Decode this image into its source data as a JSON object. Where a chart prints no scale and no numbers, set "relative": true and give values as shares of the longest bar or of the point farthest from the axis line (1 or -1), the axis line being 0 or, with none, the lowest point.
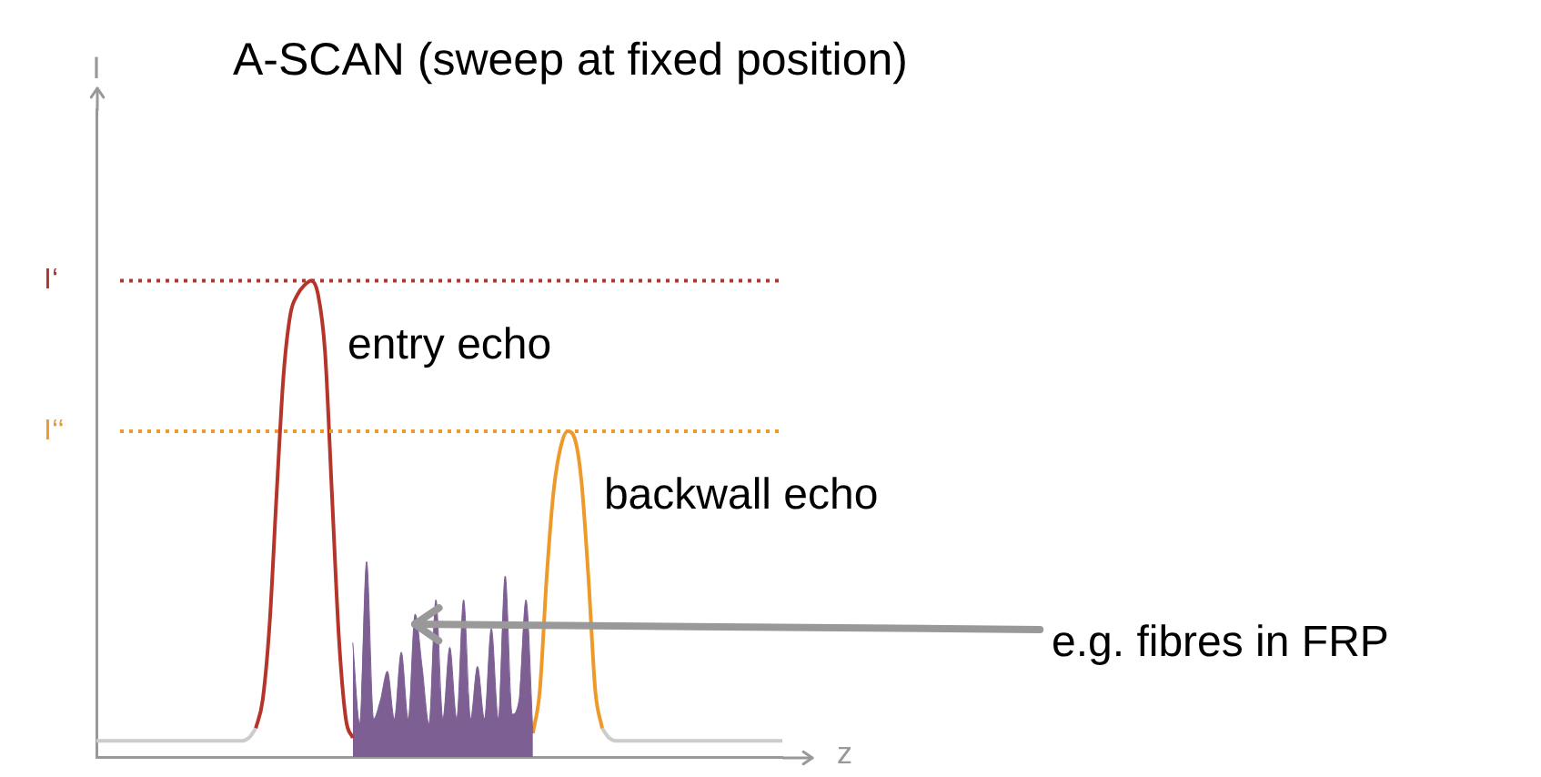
{
  "chart_data": {
    "type": "line",
    "title": "A-SCAN (sweep at fixed position)",
    "xlabel": "z",
    "annotations": [
      "I"
    ],
    "relative": true,
    "categories": [
      null,
      null,
      null,
      null,
      null,
      null,
      null,
      null,
      null,
      null,
      null,
      null,
      null,
      null,
      null,
      null,
      null,
      null,
      null,
      null,
      null,
      null,
      null,
      null,
      null,
      null,
      null,
      null,
      null,
      null,
      null,
      null,
      null,
      null,
      null,
      null,
      null,
      null,
      null,
      null,
      null,
      null,
      null,
      null,
      null,
      null,
      null,
      null,
      null,
      null,
      null,
      null,
      null,
      null,
      null,
      null,
      null,
      null,
      null,
      null,
      null,
      null,
      null,
      null,
      null,
      null,
      null,
      null,
      null,
      null,
      null,
      null,
      null,
      null,
      null,
      null,
      null,
      null,
      null,
      null,
      null,
      null,
      null,
      null,
      null,
      null,
      null,
      null,
      null,
      null,
      null,
      null,
      null,
      null,
      null,
      null,
      null,
      null,
      null,
      null
    ],
    "series": [
      {
        "color": "#cccccc",
        "values": [
          0.034,
          0.034,
          0.034,
          0.034,
          0.034,
          0.034,
          0.034,
          0.034,
          0.034,
          0.034,
          0.034,
          0.034,
          0.034,
          0.034,
          0.034,
          0.034,
          0.034,
          0.034,
          0.034,
          0.034,
          0.034,
          0.034,
          0.04,
          0.06,
          null,
          null,
          null,
          null,
          null,
          null,
          null,
          null,
          null,
          null,
          null,
          null,
          null,
          null,
          null,
          null,
          null,
          null,
          null,
          null,
          null,
          null,
          null,
          null,
          null,
          null,
          null,
          null,
          null,
          null,
          null,
          null,
          null,
          null,
          null,
          null,
          null,
          null,
          null,
          null,
          null,
          null,
          null,
          null,
          null,
          null,
          null,
          null,
          null,
          0.06,
          0.04,
          0.034,
          0.034,
          0.034,
          0.034,
          0.034,
          0.034,
          0.034,
          0.034,
          0.034,
          0.034,
          0.034,
          0.034,
          0.034,
          0.034,
          0.034,
          0.034,
          0.034,
          0.034,
          0.034,
          0.034,
          0.034,
          0.034,
          0.034,
          0.034,
          0.034
        ]
      },
      {
        "name": "entry echo",
        "color": "#b5352a",
        "values": [
          null,
          null,
          null,
          null,
          null,
          null,
          null,
          null,
          null,
          null,
          null,
          null,
          null,
          null,
          null,
          null,
          null,
          null,
          null,
          null,
          null,
          null,
          null,
          0.06,
          0.12,
          0.28,
          0.55,
          0.8,
          0.93,
          0.97,
          0.99,
          1,
          0.97,
          0.85,
          0.55,
          0.25,
          0.08,
          0.04,
          null,
          null,
          null,
          null,
          null,
          null,
          null,
          null,
          null,
          null,
          null,
          null,
          null,
          null,
          null,
          null,
          null,
          null,
          null,
          null,
          null,
          null,
          null,
          null,
          null,
          null,
          null,
          null,
          null,
          null,
          null,
          null,
          null,
          null,
          null,
          null,
          null,
          null,
          null,
          null,
          null,
          null,
          null,
          null,
          null,
          null,
          null,
          null,
          null,
          null,
          null,
          null,
          null,
          null,
          null,
          null,
          null,
          null,
          null,
          null,
          null,
          null
        ]
      },
      {
        "type": "area",
        "name": "e.g. fibres in FRP",
        "color": "#7d5f94",
        "values": [
          null,
          null,
          null,
          null,
          null,
          null,
          null,
          null,
          null,
          null,
          null,
          null,
          null,
          null,
          null,
          null,
          null,
          null,
          null,
          null,
          null,
          null,
          null,
          null,
          null,
          null,
          null,
          null,
          null,
          null,
          null,
          null,
          null,
          null,
          null,
          null,
          null,
          0.24,
          0.07,
          0.41,
          0.08,
          0.12,
          0.18,
          0.08,
          0.22,
          0.08,
          0.3,
          0.19,
          0.07,
          0.33,
          0.08,
          0.23,
          0.08,
          0.33,
          0.08,
          0.19,
          0.08,
          0.27,
          0.08,
          0.38,
          0.09,
          0.12,
          0.33,
          0.05,
          null,
          null,
          null,
          null,
          null,
          null,
          null,
          null,
          null,
          null,
          null,
          null,
          null,
          null,
          null,
          null,
          null,
          null,
          null,
          null,
          null,
          null,
          null,
          null,
          null,
          null,
          null,
          null,
          null,
          null,
          null,
          null,
          null,
          null,
          null,
          null
        ]
      },
      {
        "name": "backwall echo",
        "color": "#ee9a2a",
        "values": [
          null,
          null,
          null,
          null,
          null,
          null,
          null,
          null,
          null,
          null,
          null,
          null,
          null,
          null,
          null,
          null,
          null,
          null,
          null,
          null,
          null,
          null,
          null,
          null,
          null,
          null,
          null,
          null,
          null,
          null,
          null,
          null,
          null,
          null,
          null,
          null,
          null,
          null,
          null,
          null,
          null,
          null,
          null,
          null,
          null,
          null,
          null,
          null,
          null,
          null,
          null,
          null,
          null,
          null,
          null,
          null,
          null,
          null,
          null,
          null,
          null,
          null,
          null,
          0.05,
          0.14,
          0.38,
          0.56,
          0.65,
          0.684,
          0.67,
          0.58,
          0.38,
          0.14,
          0.06,
          null,
          null,
          null,
          null,
          null,
          null,
          null,
          null,
          null,
          null,
          null,
          null,
          null,
          null,
          null,
          null,
          null,
          null,
          null,
          null,
          null,
          null,
          null,
          null,
          null,
          null
        ]
      }
    ],
    "ref_lines": [
      {
        "axis": "y",
        "value": 1,
        "label": "I‘",
        "color": "#b5352a",
        "line_style": "dotted"
      },
      {
        "axis": "y",
        "value": 0.684,
        "label": "I‘‘",
        "color": "#ee9a2a",
        "line_style": "dotted"
      }
    ]
  }
}
